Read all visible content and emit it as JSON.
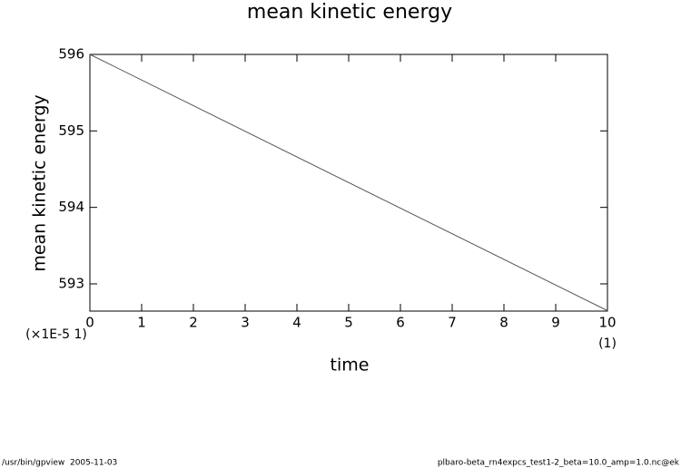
{
  "chart_data": {
    "type": "line",
    "title": "mean kinetic energy",
    "xlabel": "time",
    "ylabel": "mean kinetic energy",
    "x": [
      0,
      10
    ],
    "values": [
      596,
      592.65
    ],
    "color": "#555555",
    "xlim": [
      0,
      10
    ],
    "xticks": [
      0,
      1,
      2,
      3,
      4,
      5,
      6,
      7,
      8,
      9,
      10
    ],
    "ylim": [
      592.644,
      596
    ],
    "yticks": [
      593,
      594,
      595,
      596
    ],
    "x_unit_note": "(1)",
    "y_scale_note": "(×1E-5 1)",
    "footer_left": "/usr/bin/gpview  2005-11-03",
    "footer_right": "plbaro-beta_rn4expcs_test1-2_beta=10.0_amp=1.0.nc@ek"
  }
}
